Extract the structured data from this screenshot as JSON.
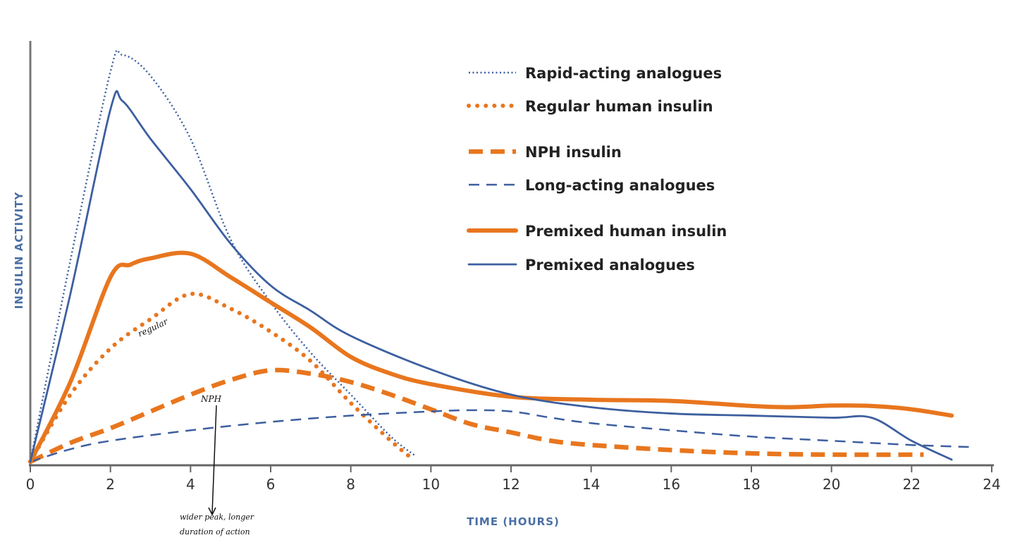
{
  "chart_data": {
    "type": "line",
    "title": "",
    "xlabel": "TIME (HOURS)",
    "ylabel": "INSULIN ACTIVITY",
    "xlim": [
      0,
      24
    ],
    "ylim": [
      0,
      100
    ],
    "y_units": "relative (no tick labels shown)",
    "x_ticks": [
      0,
      2,
      4,
      6,
      8,
      10,
      12,
      14,
      16,
      18,
      20,
      22,
      24
    ],
    "grid": false,
    "legend_position": "top-right",
    "colors": {
      "blue": "#3d5f9f",
      "orange": "#e8761e",
      "axis": "#666666"
    },
    "series": [
      {
        "name": "Rapid-acting analogues",
        "color": "#3d5f9f",
        "style": "dotted-thin",
        "points": [
          [
            0,
            0
          ],
          [
            1,
            48
          ],
          [
            2,
            93
          ],
          [
            2.3,
            97
          ],
          [
            3,
            92
          ],
          [
            4,
            77
          ],
          [
            5,
            53
          ],
          [
            6,
            38
          ],
          [
            7,
            26
          ],
          [
            8,
            16
          ],
          [
            9,
            6
          ],
          [
            9.6,
            1.5
          ]
        ]
      },
      {
        "name": "Regular human insulin",
        "color": "#e8761e",
        "style": "dotted-thick",
        "points": [
          [
            0,
            0
          ],
          [
            1,
            16
          ],
          [
            2,
            27
          ],
          [
            3,
            34
          ],
          [
            4,
            40
          ],
          [
            5,
            36.5
          ],
          [
            6,
            31
          ],
          [
            7,
            24
          ],
          [
            8,
            14
          ],
          [
            9,
            5
          ],
          [
            9.5,
            1
          ]
        ]
      },
      {
        "name": "NPH insulin",
        "color": "#e8761e",
        "style": "dashed-thick",
        "points": [
          [
            0,
            0
          ],
          [
            1,
            4.5
          ],
          [
            2,
            8
          ],
          [
            3,
            12
          ],
          [
            4,
            16
          ],
          [
            5,
            19.5
          ],
          [
            6,
            21.8
          ],
          [
            7,
            21
          ],
          [
            8,
            19
          ],
          [
            9,
            16
          ],
          [
            10,
            12.5
          ],
          [
            11,
            9
          ],
          [
            12,
            7
          ],
          [
            13,
            5
          ],
          [
            14,
            4
          ],
          [
            16,
            2.8
          ],
          [
            18,
            2
          ],
          [
            20,
            1.7
          ],
          [
            22.3,
            1.7
          ]
        ]
      },
      {
        "name": "Long-acting analogues",
        "color": "#3d5f9f",
        "style": "dashed-thin",
        "points": [
          [
            0,
            0
          ],
          [
            1,
            3
          ],
          [
            2,
            5
          ],
          [
            4,
            7.5
          ],
          [
            6,
            9.5
          ],
          [
            8,
            11
          ],
          [
            10,
            12
          ],
          [
            11,
            12.3
          ],
          [
            12,
            12
          ],
          [
            13,
            10.5
          ],
          [
            14,
            9.2
          ],
          [
            16,
            7.5
          ],
          [
            18,
            6
          ],
          [
            20,
            5
          ],
          [
            22,
            4
          ],
          [
            23.5,
            3.5
          ]
        ]
      },
      {
        "name": "Premixed human insulin",
        "color": "#e8761e",
        "style": "solid-thick",
        "points": [
          [
            0,
            0
          ],
          [
            1,
            19
          ],
          [
            2,
            44
          ],
          [
            2.5,
            47
          ],
          [
            3,
            48.5
          ],
          [
            4,
            49.6
          ],
          [
            5,
            44
          ],
          [
            6,
            38
          ],
          [
            7,
            32
          ],
          [
            8,
            25
          ],
          [
            9,
            21
          ],
          [
            10,
            18.5
          ],
          [
            12,
            15.5
          ],
          [
            14,
            14.8
          ],
          [
            16,
            14.5
          ],
          [
            18,
            13.3
          ],
          [
            19,
            13
          ],
          [
            20,
            13.4
          ],
          [
            21,
            13.3
          ],
          [
            22,
            12.5
          ],
          [
            23,
            11
          ]
        ]
      },
      {
        "name": "Premixed analogues",
        "color": "#3d5f9f",
        "style": "solid-thin",
        "points": [
          [
            0,
            0
          ],
          [
            1,
            40
          ],
          [
            2,
            84
          ],
          [
            2.3,
            86
          ],
          [
            3,
            77
          ],
          [
            4,
            65
          ],
          [
            5,
            52
          ],
          [
            6,
            42
          ],
          [
            7,
            36
          ],
          [
            8,
            30
          ],
          [
            10,
            22
          ],
          [
            12,
            16
          ],
          [
            14,
            13
          ],
          [
            16,
            11.5
          ],
          [
            18,
            11
          ],
          [
            20,
            10.5
          ],
          [
            21,
            10.5
          ],
          [
            22,
            5
          ],
          [
            23,
            0.5
          ]
        ]
      }
    ],
    "annotations": [
      {
        "text": "regular",
        "x": 3.3,
        "y": 30,
        "handwritten": true
      },
      {
        "text": "NPH",
        "x": 4.6,
        "y": 15,
        "handwritten": true
      },
      {
        "text": "wider peak, longer",
        "handwritten": true
      },
      {
        "text": "duration of action",
        "handwritten": true
      }
    ]
  }
}
